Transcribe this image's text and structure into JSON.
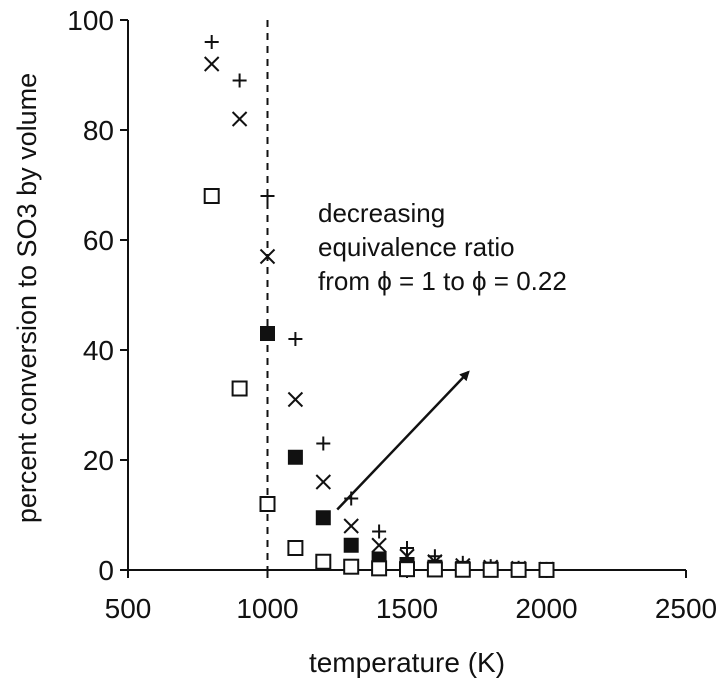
{
  "chart_data": {
    "type": "scatter",
    "xlabel": "temperature (K)",
    "ylabel": "percent conversion to SO3 by volume",
    "xlim": [
      500,
      2500
    ],
    "ylim": [
      0,
      100
    ],
    "x_ticks": [
      500,
      1000,
      1500,
      2000,
      2500
    ],
    "y_ticks": [
      0,
      20,
      40,
      60,
      80,
      100
    ],
    "grid": false,
    "reference_line": {
      "x": 1000,
      "style": "dashed"
    },
    "annotation": {
      "lines": [
        "decreasing",
        "equivalence ratio",
        "from ϕ = 1 to ϕ = 0.22"
      ],
      "arrow": {
        "from": [
          1250,
          11
        ],
        "to": [
          1720,
          36
        ]
      }
    },
    "series": [
      {
        "marker": "plus",
        "points": [
          [
            800,
            96
          ],
          [
            900,
            89
          ],
          [
            1000,
            68
          ],
          [
            1100,
            42
          ],
          [
            1200,
            23
          ],
          [
            1300,
            13
          ],
          [
            1400,
            7
          ],
          [
            1500,
            4
          ],
          [
            1600,
            2.5
          ],
          [
            1700,
            1.3
          ],
          [
            1800,
            0.7
          ],
          [
            1900,
            0.4
          ],
          [
            2000,
            0.2
          ]
        ]
      },
      {
        "marker": "cross",
        "points": [
          [
            800,
            92
          ],
          [
            900,
            82
          ],
          [
            1000,
            57
          ],
          [
            1100,
            31
          ],
          [
            1200,
            16
          ],
          [
            1300,
            8
          ],
          [
            1400,
            4.5
          ],
          [
            1500,
            2.5
          ],
          [
            1600,
            1.5
          ],
          [
            1700,
            0.8
          ],
          [
            1800,
            0.5
          ],
          [
            1900,
            0.3
          ],
          [
            2000,
            0.15
          ]
        ]
      },
      {
        "marker": "filled-square",
        "points": [
          [
            1000,
            43
          ],
          [
            1100,
            20.5
          ],
          [
            1200,
            9.5
          ],
          [
            1300,
            4.5
          ],
          [
            1400,
            2
          ],
          [
            1500,
            1
          ],
          [
            1600,
            0.5
          ],
          [
            1700,
            0.3
          ],
          [
            1800,
            0.15
          ],
          [
            1900,
            0.1
          ],
          [
            2000,
            0.05
          ]
        ]
      },
      {
        "marker": "open-square",
        "points": [
          [
            800,
            68
          ],
          [
            900,
            33
          ],
          [
            1000,
            12
          ],
          [
            1100,
            4
          ],
          [
            1200,
            1.5
          ],
          [
            1300,
            0.6
          ],
          [
            1400,
            0.3
          ],
          [
            1500,
            0.15
          ],
          [
            1600,
            0.1
          ],
          [
            1700,
            0.05
          ],
          [
            1800,
            0.03
          ],
          [
            1900,
            0.02
          ],
          [
            2000,
            0.01
          ]
        ]
      }
    ]
  }
}
